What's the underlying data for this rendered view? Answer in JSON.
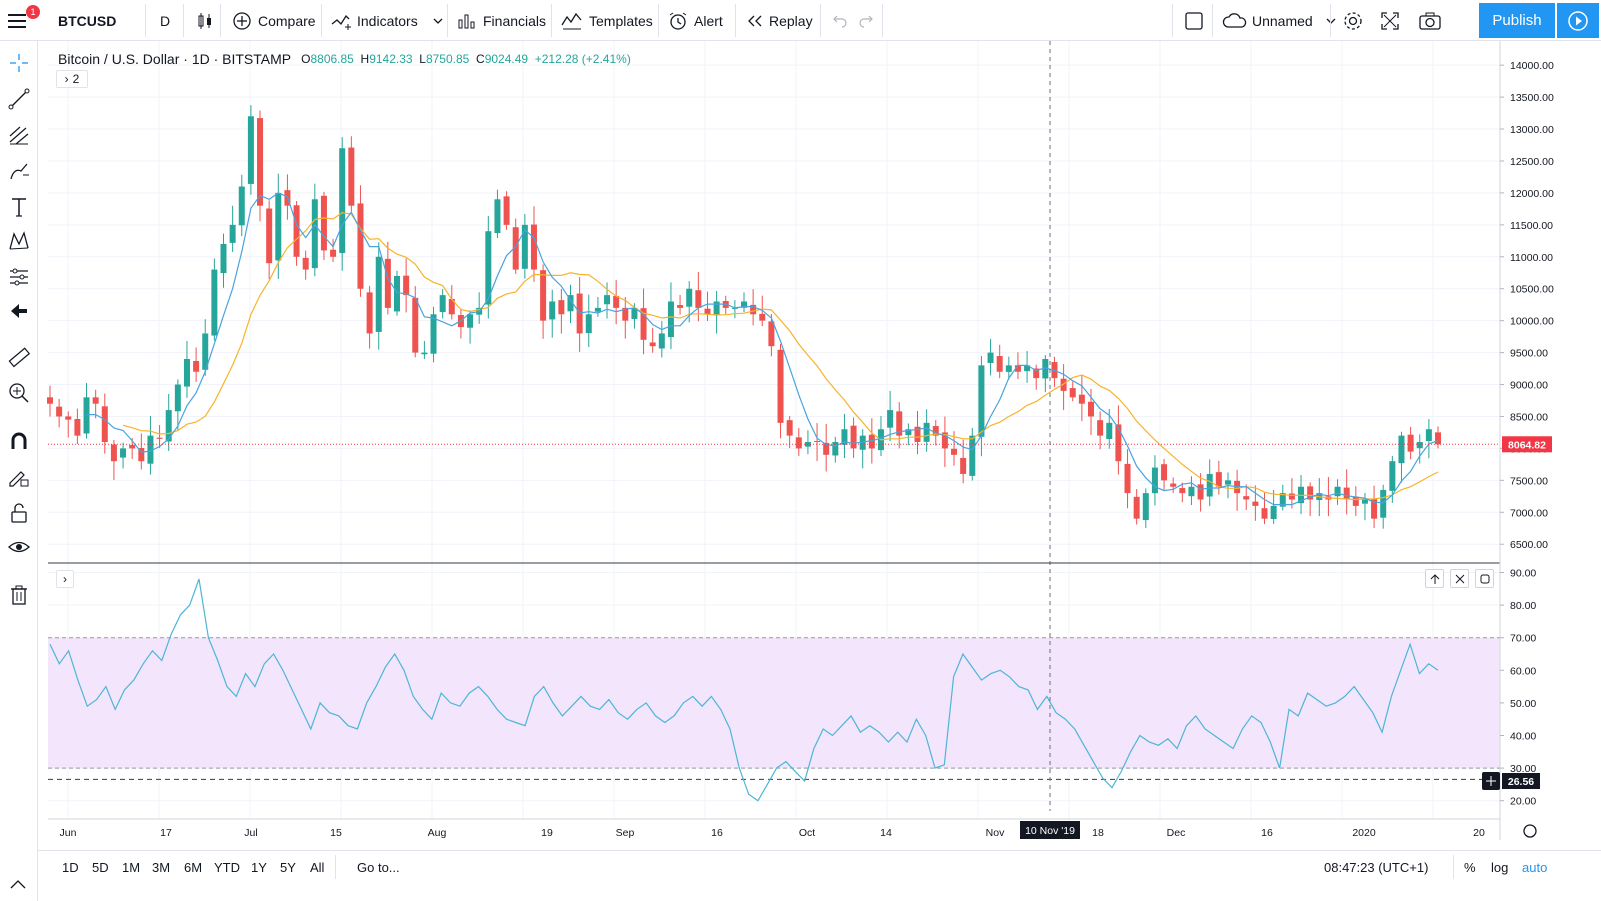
{
  "toolbar": {
    "symbol": "BTCUSD",
    "interval": "D",
    "compare": "Compare",
    "indicators": "Indicators",
    "financials": "Financials",
    "templates": "Templates",
    "alert": "Alert",
    "replay": "Replay",
    "layout_name": "Unnamed",
    "publish": "Publish",
    "notification_count": "1"
  },
  "legend": {
    "title": "Bitcoin / U.S. Dollar · 1D · BITSTAMP",
    "o_label": "O",
    "o_value": "8806.85",
    "h_label": "H",
    "h_value": "9142.33",
    "l_label": "L",
    "l_value": "8750.85",
    "c_label": "C",
    "c_value": "9024.49",
    "change": "+212.28 (+2.41%)",
    "indicators_toggle": "2",
    "rsi_toggle": "›"
  },
  "colors": {
    "up": "#26a69a",
    "down": "#ef5350",
    "ma_fast": "#4aa3df",
    "ma_slow": "#f7b32b",
    "rsi_line": "#4db6d6",
    "rsi_band": "#f3e5fc",
    "price_line": "#f23645",
    "accent": "#2196f3"
  },
  "price_axis": {
    "labels": [
      "14000.00",
      "13500.00",
      "13000.00",
      "12500.00",
      "12000.00",
      "11500.00",
      "11000.00",
      "10500.00",
      "10000.00",
      "9500.00",
      "9000.00",
      "8500.00",
      "8000.00",
      "7500.00",
      "7000.00",
      "6500.00"
    ],
    "last_price": "8064.82"
  },
  "rsi_axis": {
    "labels": [
      "90.00",
      "80.00",
      "70.00",
      "60.00",
      "50.00",
      "40.00",
      "30.00",
      "20.00"
    ],
    "current": "26.56"
  },
  "time_axis": {
    "labels": [
      "Jun",
      "17",
      "Jul",
      "15",
      "Aug",
      "19",
      "Sep",
      "16",
      "Oct",
      "14",
      "Nov",
      "18",
      "Dec",
      "16",
      "2020",
      "20"
    ],
    "crosshair_label": "10 Nov '19"
  },
  "ranges": [
    "1D",
    "5D",
    "1M",
    "3M",
    "6M",
    "YTD",
    "1Y",
    "5Y",
    "All"
  ],
  "goto": "Go to...",
  "clock": "08:47:23 (UTC+1)",
  "scale_options": {
    "percent": "%",
    "log": "log",
    "auto": "auto"
  },
  "chart_data": {
    "type": "candlestick",
    "symbol": "BTCUSD",
    "ylim": [
      6300,
      14300
    ],
    "close_series": [
      8700,
      8500,
      8450,
      8200,
      8800,
      8700,
      8100,
      7800,
      8000,
      8000,
      7800,
      8200,
      8150,
      8600,
      9000,
      9400,
      9200,
      9800,
      10800,
      11200,
      11500,
      12100,
      13200,
      11800,
      10900,
      12000,
      11800,
      11000,
      10800,
      11900,
      11100,
      11000,
      12700,
      11800,
      10500,
      9800,
      11000,
      10200,
      10700,
      10400,
      9500,
      9500,
      10100,
      10400,
      10100,
      9900,
      10100,
      10200,
      11400,
      11900,
      11500,
      10800,
      11500,
      10800,
      10000,
      10300,
      10100,
      10400,
      9800,
      10100,
      10200,
      10400,
      10200,
      10000,
      10200,
      9700,
      9600,
      9800,
      10300,
      10200,
      10500,
      10200,
      10100,
      10300,
      10200,
      10200,
      10300,
      10100,
      10000,
      9600,
      8400,
      8200,
      8000,
      8100,
      8100,
      7900,
      8100,
      8300,
      8000,
      8200,
      8000,
      8300,
      8600,
      8200,
      8300,
      8100,
      8400,
      8200,
      8000,
      7900,
      7600,
      8200,
      9300,
      9500,
      9200,
      9300,
      9200,
      9300,
      9100,
      9400,
      9100,
      8900,
      8800,
      8700,
      8500,
      8200,
      8400,
      7800,
      7300,
      6900,
      7300,
      7700,
      7500,
      7400,
      7300,
      7400,
      7200,
      7600,
      7400,
      7500,
      7300,
      7200,
      7100,
      6900,
      7100,
      7300,
      7200,
      7400,
      7200,
      7300,
      7200,
      7400,
      7200,
      7100,
      7200,
      6900,
      7350,
      7800,
      8200,
      7950,
      8100,
      8300,
      8064
    ],
    "ma_fast_note": "short moving average (blue)",
    "ma_slow_note": "longer moving average (orange)"
  },
  "rsi_data": {
    "type": "line",
    "ylim": [
      15,
      92
    ],
    "band": [
      30,
      70
    ],
    "values": [
      68,
      62,
      66,
      57,
      49,
      51,
      55,
      48,
      54,
      57,
      62,
      66,
      63,
      71,
      77,
      80,
      88,
      70,
      63,
      55,
      52,
      59,
      55,
      62,
      65,
      60,
      54,
      48,
      42,
      50,
      47,
      46,
      43,
      42,
      50,
      55,
      61,
      65,
      60,
      52,
      48,
      45,
      53,
      50,
      49,
      53,
      55,
      52,
      48,
      45,
      44,
      43,
      52,
      55,
      50,
      46,
      49,
      52,
      49,
      48,
      51,
      47,
      45,
      48,
      50,
      46,
      44,
      46,
      50,
      52,
      49,
      52,
      48,
      42,
      30,
      22,
      20,
      25,
      30,
      32,
      29,
      26,
      36,
      42,
      40,
      43,
      46,
      41,
      43,
      41,
      38,
      41,
      38,
      45,
      40,
      30,
      31,
      58,
      65,
      61,
      57,
      59,
      60,
      58,
      55,
      54,
      48,
      52,
      47,
      45,
      42,
      37,
      32,
      27,
      24,
      29,
      35,
      40,
      38,
      37,
      39,
      36,
      43,
      46,
      42,
      40,
      38,
      36,
      42,
      46,
      44,
      38,
      30,
      48,
      46,
      53,
      51,
      49,
      50,
      52,
      55,
      51,
      47,
      41,
      52,
      60,
      68,
      59,
      62,
      60
    ]
  }
}
